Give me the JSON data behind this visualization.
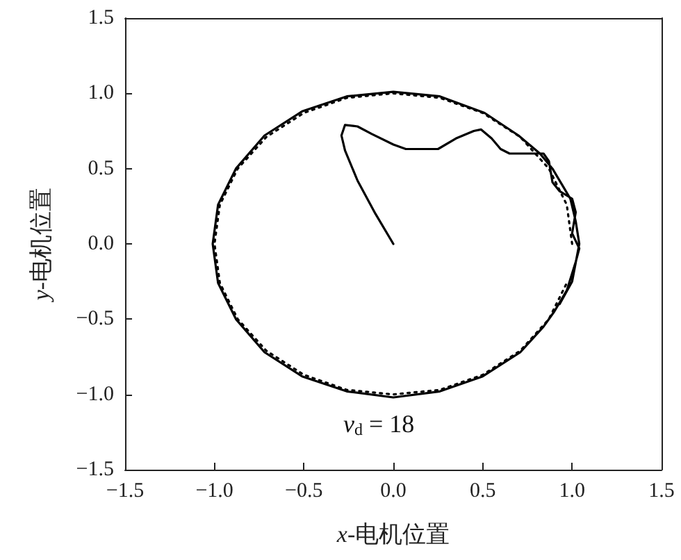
{
  "chart_data": {
    "type": "line",
    "xlabel": "x-电机位置",
    "ylabel": "y-电机位置",
    "xlim": [
      -1.5,
      1.5
    ],
    "ylim": [
      -1.5,
      1.5
    ],
    "xticks": [
      -1.5,
      {
        "value": -1,
        "label": "−1.0"
      },
      -0.5,
      {
        "value": 0,
        "label": "0.0"
      },
      0.5,
      {
        "value": 1,
        "label": "1.0"
      },
      1.5
    ],
    "yticks": [
      -1.5,
      {
        "value": -1,
        "label": "−1.0"
      },
      -0.5,
      {
        "value": 0,
        "label": "0.0"
      },
      0.5,
      {
        "value": 1,
        "label": "1.0"
      },
      1.5
    ],
    "grid": false,
    "marker": "none",
    "annotations": [
      "v$_{d}$ = 18"
    ],
    "series": [
      {
        "color": "#000000",
        "line_style": "solid",
        "x": [
          0,
          -0.1,
          -0.2,
          -0.27,
          -0.29,
          -0.27,
          -0.2,
          -0.12,
          0.0,
          0.07,
          0.16,
          0.25,
          0.35,
          0.45,
          0.49,
          0.55,
          0.6,
          0.65,
          0.75,
          0.84,
          0.87,
          0.89,
          0.93,
          1.0,
          1.02,
          1.0,
          1.04,
          1.02,
          0.97,
          0.9,
          0.84,
          0.71,
          0.5,
          0.26,
          0,
          -0.26,
          -0.51,
          -0.72,
          -0.88,
          -0.98,
          -1.01,
          -0.98,
          -0.88,
          -0.72,
          -0.51,
          -0.26,
          0,
          0.26,
          0.51,
          0.7,
          0.82,
          0.89,
          0.95,
          0.99,
          1.02,
          1.04,
          1.0,
          0.93
        ],
        "values": [
          0,
          0.2,
          0.42,
          0.62,
          0.72,
          0.79,
          0.78,
          0.73,
          0.66,
          0.63,
          0.63,
          0.63,
          0.7,
          0.75,
          0.76,
          0.7,
          0.63,
          0.6,
          0.6,
          0.6,
          0.55,
          0.41,
          0.35,
          0.3,
          0.21,
          0.07,
          -0.03,
          -0.12,
          -0.31,
          -0.45,
          -0.55,
          -0.72,
          -0.88,
          -0.98,
          -1.02,
          -0.98,
          -0.88,
          -0.72,
          -0.5,
          -0.26,
          0,
          0.26,
          0.5,
          0.72,
          0.88,
          0.98,
          1.01,
          0.98,
          0.87,
          0.72,
          0.6,
          0.5,
          0.38,
          0.3,
          0.15,
          0.0,
          -0.25,
          -0.4
        ]
      },
      {
        "color": "#000000",
        "line_style": "dotted",
        "x": [
          1,
          0.97,
          0.87,
          0.71,
          0.5,
          0.26,
          0,
          -0.26,
          -0.5,
          -0.71,
          -0.87,
          -0.97,
          -1,
          -0.97,
          -0.87,
          -0.71,
          -0.5,
          -0.26,
          0,
          0.26,
          0.5,
          0.71,
          0.87,
          0.97
        ],
        "values": [
          0,
          0.26,
          0.5,
          0.71,
          0.87,
          0.97,
          1,
          0.97,
          0.87,
          0.71,
          0.5,
          0.26,
          0,
          -0.26,
          -0.5,
          -0.71,
          -0.87,
          -0.97,
          -1,
          -0.97,
          -0.87,
          -0.71,
          -0.5,
          -0.26
        ]
      }
    ]
  }
}
